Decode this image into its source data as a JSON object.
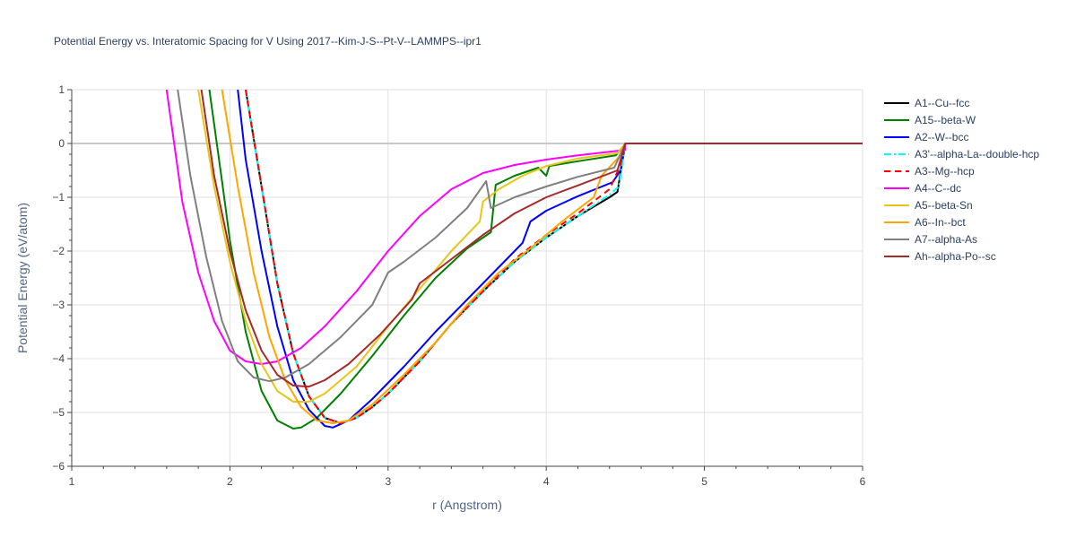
{
  "chart_data": {
    "type": "line",
    "title": "Potential Energy vs. Interatomic Spacing for V Using 2017--Kim-J-S--Pt-V--LAMMPS--ipr1",
    "xlabel": "r (Angstrom)",
    "ylabel": "Potential Energy (eV/atom)",
    "xlim": [
      1,
      6
    ],
    "ylim": [
      -6,
      1
    ],
    "xticks": [
      1,
      2,
      3,
      4,
      5,
      6
    ],
    "yticks": [
      -6,
      -5,
      -4,
      -3,
      -2,
      -1,
      0,
      1
    ],
    "xtick_labels": [
      "1",
      "2",
      "3",
      "4",
      "5",
      "6"
    ],
    "ytick_labels": [
      "−6",
      "−5",
      "−4",
      "−3",
      "−2",
      "−1",
      "0",
      "1"
    ],
    "grid": true,
    "legend_position": "right",
    "series": [
      {
        "name": "A1--Cu--fcc",
        "color": "#000000",
        "dash": "solid",
        "points": [
          [
            2.1,
            1
          ],
          [
            2.2,
            -0.8
          ],
          [
            2.3,
            -2.6
          ],
          [
            2.4,
            -3.9
          ],
          [
            2.5,
            -4.7
          ],
          [
            2.6,
            -5.1
          ],
          [
            2.7,
            -5.2
          ],
          [
            2.8,
            -5.1
          ],
          [
            2.9,
            -4.9
          ],
          [
            3.0,
            -4.65
          ],
          [
            3.2,
            -4.05
          ],
          [
            3.4,
            -3.35
          ],
          [
            3.6,
            -2.75
          ],
          [
            3.8,
            -2.2
          ],
          [
            4.0,
            -1.75
          ],
          [
            4.2,
            -1.35
          ],
          [
            4.4,
            -1.0
          ],
          [
            4.45,
            -0.9
          ],
          [
            4.5,
            0
          ],
          [
            6,
            0
          ]
        ]
      },
      {
        "name": "A15--beta-W",
        "color": "#008000",
        "dash": "solid",
        "points": [
          [
            1.87,
            1
          ],
          [
            1.95,
            -0.7
          ],
          [
            2.0,
            -1.8
          ],
          [
            2.1,
            -3.5
          ],
          [
            2.2,
            -4.6
          ],
          [
            2.3,
            -5.15
          ],
          [
            2.4,
            -5.3
          ],
          [
            2.45,
            -5.28
          ],
          [
            2.55,
            -5.1
          ],
          [
            2.7,
            -4.65
          ],
          [
            2.9,
            -3.95
          ],
          [
            3.1,
            -3.2
          ],
          [
            3.3,
            -2.5
          ],
          [
            3.5,
            -1.95
          ],
          [
            3.65,
            -1.65
          ],
          [
            3.68,
            -0.77
          ],
          [
            3.8,
            -0.6
          ],
          [
            3.95,
            -0.45
          ],
          [
            4.0,
            -0.6
          ],
          [
            4.02,
            -0.42
          ],
          [
            4.2,
            -0.33
          ],
          [
            4.44,
            -0.22
          ],
          [
            4.5,
            0
          ],
          [
            6,
            0
          ]
        ]
      },
      {
        "name": "A2--W--bcc",
        "color": "#0000ff",
        "dash": "solid",
        "points": [
          [
            2.05,
            1
          ],
          [
            2.1,
            -0.3
          ],
          [
            2.2,
            -2.0
          ],
          [
            2.3,
            -3.4
          ],
          [
            2.4,
            -4.4
          ],
          [
            2.5,
            -4.95
          ],
          [
            2.6,
            -5.25
          ],
          [
            2.65,
            -5.28
          ],
          [
            2.75,
            -5.15
          ],
          [
            2.9,
            -4.75
          ],
          [
            3.1,
            -4.15
          ],
          [
            3.3,
            -3.5
          ],
          [
            3.5,
            -2.9
          ],
          [
            3.7,
            -2.3
          ],
          [
            3.85,
            -1.85
          ],
          [
            3.9,
            -1.45
          ],
          [
            4.0,
            -1.25
          ],
          [
            4.2,
            -0.98
          ],
          [
            4.42,
            -0.72
          ],
          [
            4.47,
            -0.5
          ],
          [
            4.5,
            0
          ],
          [
            6,
            0
          ]
        ]
      },
      {
        "name": "A3'--alpha-La--double-hcp",
        "color": "#00ffff",
        "dash": "dashdot",
        "points": [
          [
            2.1,
            1
          ],
          [
            2.2,
            -0.8
          ],
          [
            2.3,
            -2.6
          ],
          [
            2.4,
            -3.9
          ],
          [
            2.5,
            -4.7
          ],
          [
            2.6,
            -5.1
          ],
          [
            2.7,
            -5.2
          ],
          [
            2.8,
            -5.1
          ],
          [
            2.9,
            -4.9
          ],
          [
            3.0,
            -4.65
          ],
          [
            3.2,
            -4.05
          ],
          [
            3.4,
            -3.35
          ],
          [
            3.6,
            -2.75
          ],
          [
            3.8,
            -2.2
          ],
          [
            4.0,
            -1.75
          ],
          [
            4.2,
            -1.35
          ],
          [
            4.4,
            -0.95
          ],
          [
            4.46,
            -0.8
          ],
          [
            4.5,
            0
          ],
          [
            6,
            0
          ]
        ]
      },
      {
        "name": "A3--Mg--hcp",
        "color": "#ff0000",
        "dash": "dash",
        "points": [
          [
            2.1,
            1
          ],
          [
            2.2,
            -0.8
          ],
          [
            2.3,
            -2.6
          ],
          [
            2.4,
            -3.9
          ],
          [
            2.5,
            -4.7
          ],
          [
            2.6,
            -5.1
          ],
          [
            2.7,
            -5.2
          ],
          [
            2.8,
            -5.1
          ],
          [
            2.9,
            -4.9
          ],
          [
            3.0,
            -4.65
          ],
          [
            3.2,
            -4.05
          ],
          [
            3.4,
            -3.35
          ],
          [
            3.6,
            -2.75
          ],
          [
            3.8,
            -2.15
          ],
          [
            4.0,
            -1.7
          ],
          [
            4.2,
            -1.3
          ],
          [
            4.4,
            -0.85
          ],
          [
            4.47,
            -0.4
          ],
          [
            4.5,
            0
          ],
          [
            6,
            0
          ]
        ]
      },
      {
        "name": "A4--C--dc",
        "color": "#ff00ff",
        "dash": "solid",
        "points": [
          [
            1.6,
            1
          ],
          [
            1.7,
            -1.1
          ],
          [
            1.8,
            -2.4
          ],
          [
            1.9,
            -3.3
          ],
          [
            2.0,
            -3.85
          ],
          [
            2.1,
            -4.05
          ],
          [
            2.2,
            -4.1
          ],
          [
            2.3,
            -4.05
          ],
          [
            2.45,
            -3.8
          ],
          [
            2.6,
            -3.4
          ],
          [
            2.8,
            -2.75
          ],
          [
            3.0,
            -2.0
          ],
          [
            3.2,
            -1.35
          ],
          [
            3.4,
            -0.85
          ],
          [
            3.6,
            -0.55
          ],
          [
            3.8,
            -0.4
          ],
          [
            4.0,
            -0.3
          ],
          [
            4.2,
            -0.22
          ],
          [
            4.5,
            -0.12
          ],
          [
            4.5,
            0
          ],
          [
            6,
            0
          ]
        ]
      },
      {
        "name": "A5--beta-Sn",
        "color": "#e6c619",
        "dash": "solid",
        "points": [
          [
            1.8,
            1
          ],
          [
            1.9,
            -0.8
          ],
          [
            2.0,
            -2.2
          ],
          [
            2.1,
            -3.3
          ],
          [
            2.2,
            -4.1
          ],
          [
            2.3,
            -4.6
          ],
          [
            2.4,
            -4.8
          ],
          [
            2.5,
            -4.8
          ],
          [
            2.6,
            -4.65
          ],
          [
            2.8,
            -4.15
          ],
          [
            3.0,
            -3.4
          ],
          [
            3.2,
            -2.7
          ],
          [
            3.4,
            -2.0
          ],
          [
            3.58,
            -1.45
          ],
          [
            3.6,
            -1.08
          ],
          [
            3.7,
            -0.85
          ],
          [
            3.85,
            -0.6
          ],
          [
            4.0,
            -0.42
          ],
          [
            4.2,
            -0.28
          ],
          [
            4.45,
            -0.18
          ],
          [
            4.5,
            0
          ],
          [
            6,
            0
          ]
        ]
      },
      {
        "name": "A6--In--bct",
        "color": "#ffa500",
        "dash": "solid",
        "points": [
          [
            1.95,
            1
          ],
          [
            2.05,
            -0.8
          ],
          [
            2.15,
            -2.4
          ],
          [
            2.25,
            -3.6
          ],
          [
            2.35,
            -4.4
          ],
          [
            2.45,
            -4.9
          ],
          [
            2.55,
            -5.15
          ],
          [
            2.65,
            -5.2
          ],
          [
            2.75,
            -5.15
          ],
          [
            2.9,
            -4.85
          ],
          [
            3.1,
            -4.3
          ],
          [
            3.3,
            -3.7
          ],
          [
            3.5,
            -3.0
          ],
          [
            3.7,
            -2.4
          ],
          [
            3.9,
            -1.95
          ],
          [
            4.1,
            -1.45
          ],
          [
            4.3,
            -1.0
          ],
          [
            4.35,
            -0.6
          ],
          [
            4.46,
            -0.25
          ],
          [
            4.5,
            0
          ],
          [
            6,
            0
          ]
        ]
      },
      {
        "name": "A7--alpha-As",
        "color": "#808080",
        "dash": "solid",
        "points": [
          [
            1.67,
            1
          ],
          [
            1.75,
            -0.6
          ],
          [
            1.85,
            -2.1
          ],
          [
            1.95,
            -3.3
          ],
          [
            2.05,
            -4.05
          ],
          [
            2.15,
            -4.35
          ],
          [
            2.25,
            -4.42
          ],
          [
            2.35,
            -4.35
          ],
          [
            2.5,
            -4.1
          ],
          [
            2.7,
            -3.6
          ],
          [
            2.9,
            -3.0
          ],
          [
            3.0,
            -2.4
          ],
          [
            3.1,
            -2.2
          ],
          [
            3.3,
            -1.75
          ],
          [
            3.5,
            -1.2
          ],
          [
            3.62,
            -0.7
          ],
          [
            3.65,
            -1.2
          ],
          [
            3.8,
            -1.0
          ],
          [
            4.0,
            -0.8
          ],
          [
            4.2,
            -0.62
          ],
          [
            4.43,
            -0.45
          ],
          [
            4.5,
            0
          ],
          [
            6,
            0
          ]
        ]
      },
      {
        "name": "Ah--alpha-Po--sc",
        "color": "#a52a2a",
        "dash": "solid",
        "points": [
          [
            1.82,
            1
          ],
          [
            1.9,
            -0.6
          ],
          [
            2.0,
            -2.0
          ],
          [
            2.1,
            -3.1
          ],
          [
            2.2,
            -3.85
          ],
          [
            2.3,
            -4.3
          ],
          [
            2.4,
            -4.5
          ],
          [
            2.5,
            -4.52
          ],
          [
            2.6,
            -4.4
          ],
          [
            2.75,
            -4.1
          ],
          [
            2.95,
            -3.55
          ],
          [
            3.15,
            -2.9
          ],
          [
            3.2,
            -2.6
          ],
          [
            3.4,
            -2.15
          ],
          [
            3.6,
            -1.7
          ],
          [
            3.8,
            -1.3
          ],
          [
            4.0,
            -1.0
          ],
          [
            4.2,
            -0.78
          ],
          [
            4.45,
            -0.5
          ],
          [
            4.5,
            0
          ],
          [
            6,
            0
          ]
        ]
      }
    ]
  }
}
